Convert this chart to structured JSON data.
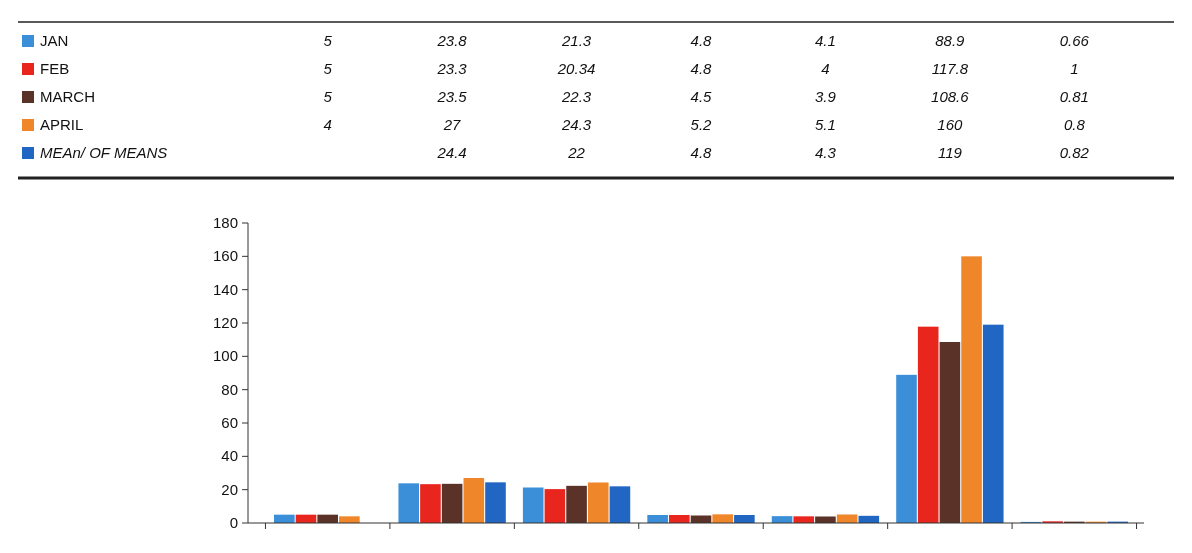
{
  "chart_data": {
    "type": "bar",
    "categories": [
      null,
      null,
      null,
      null,
      null,
      null,
      null
    ],
    "series": [
      {
        "name": "JAN",
        "color": "#3a8fd8",
        "values": [
          5,
          23.8,
          21.3,
          4.8,
          4.1,
          88.9,
          0.66
        ]
      },
      {
        "name": "FEB",
        "color": "#e8261e",
        "values": [
          5,
          23.3,
          20.34,
          4.8,
          4,
          117.8,
          1
        ]
      },
      {
        "name": "MARCH",
        "color": "#5a3228",
        "values": [
          5,
          23.5,
          22.3,
          4.5,
          3.9,
          108.6,
          0.81
        ]
      },
      {
        "name": "APRIL",
        "color": "#f0862a",
        "values": [
          4,
          27,
          24.3,
          5.2,
          5.1,
          160,
          0.8
        ]
      },
      {
        "name": "MEAn/ OF MEANS",
        "color": "#2266c4",
        "values": [
          null,
          24.4,
          22,
          4.8,
          4.3,
          119,
          0.82
        ]
      }
    ],
    "ylim": [
      0,
      180
    ],
    "yticks": [
      0,
      20,
      40,
      60,
      80,
      100,
      120,
      140,
      160,
      180
    ],
    "data_labels": true,
    "legend": "top",
    "grid": false,
    "tick_labels": "y"
  }
}
